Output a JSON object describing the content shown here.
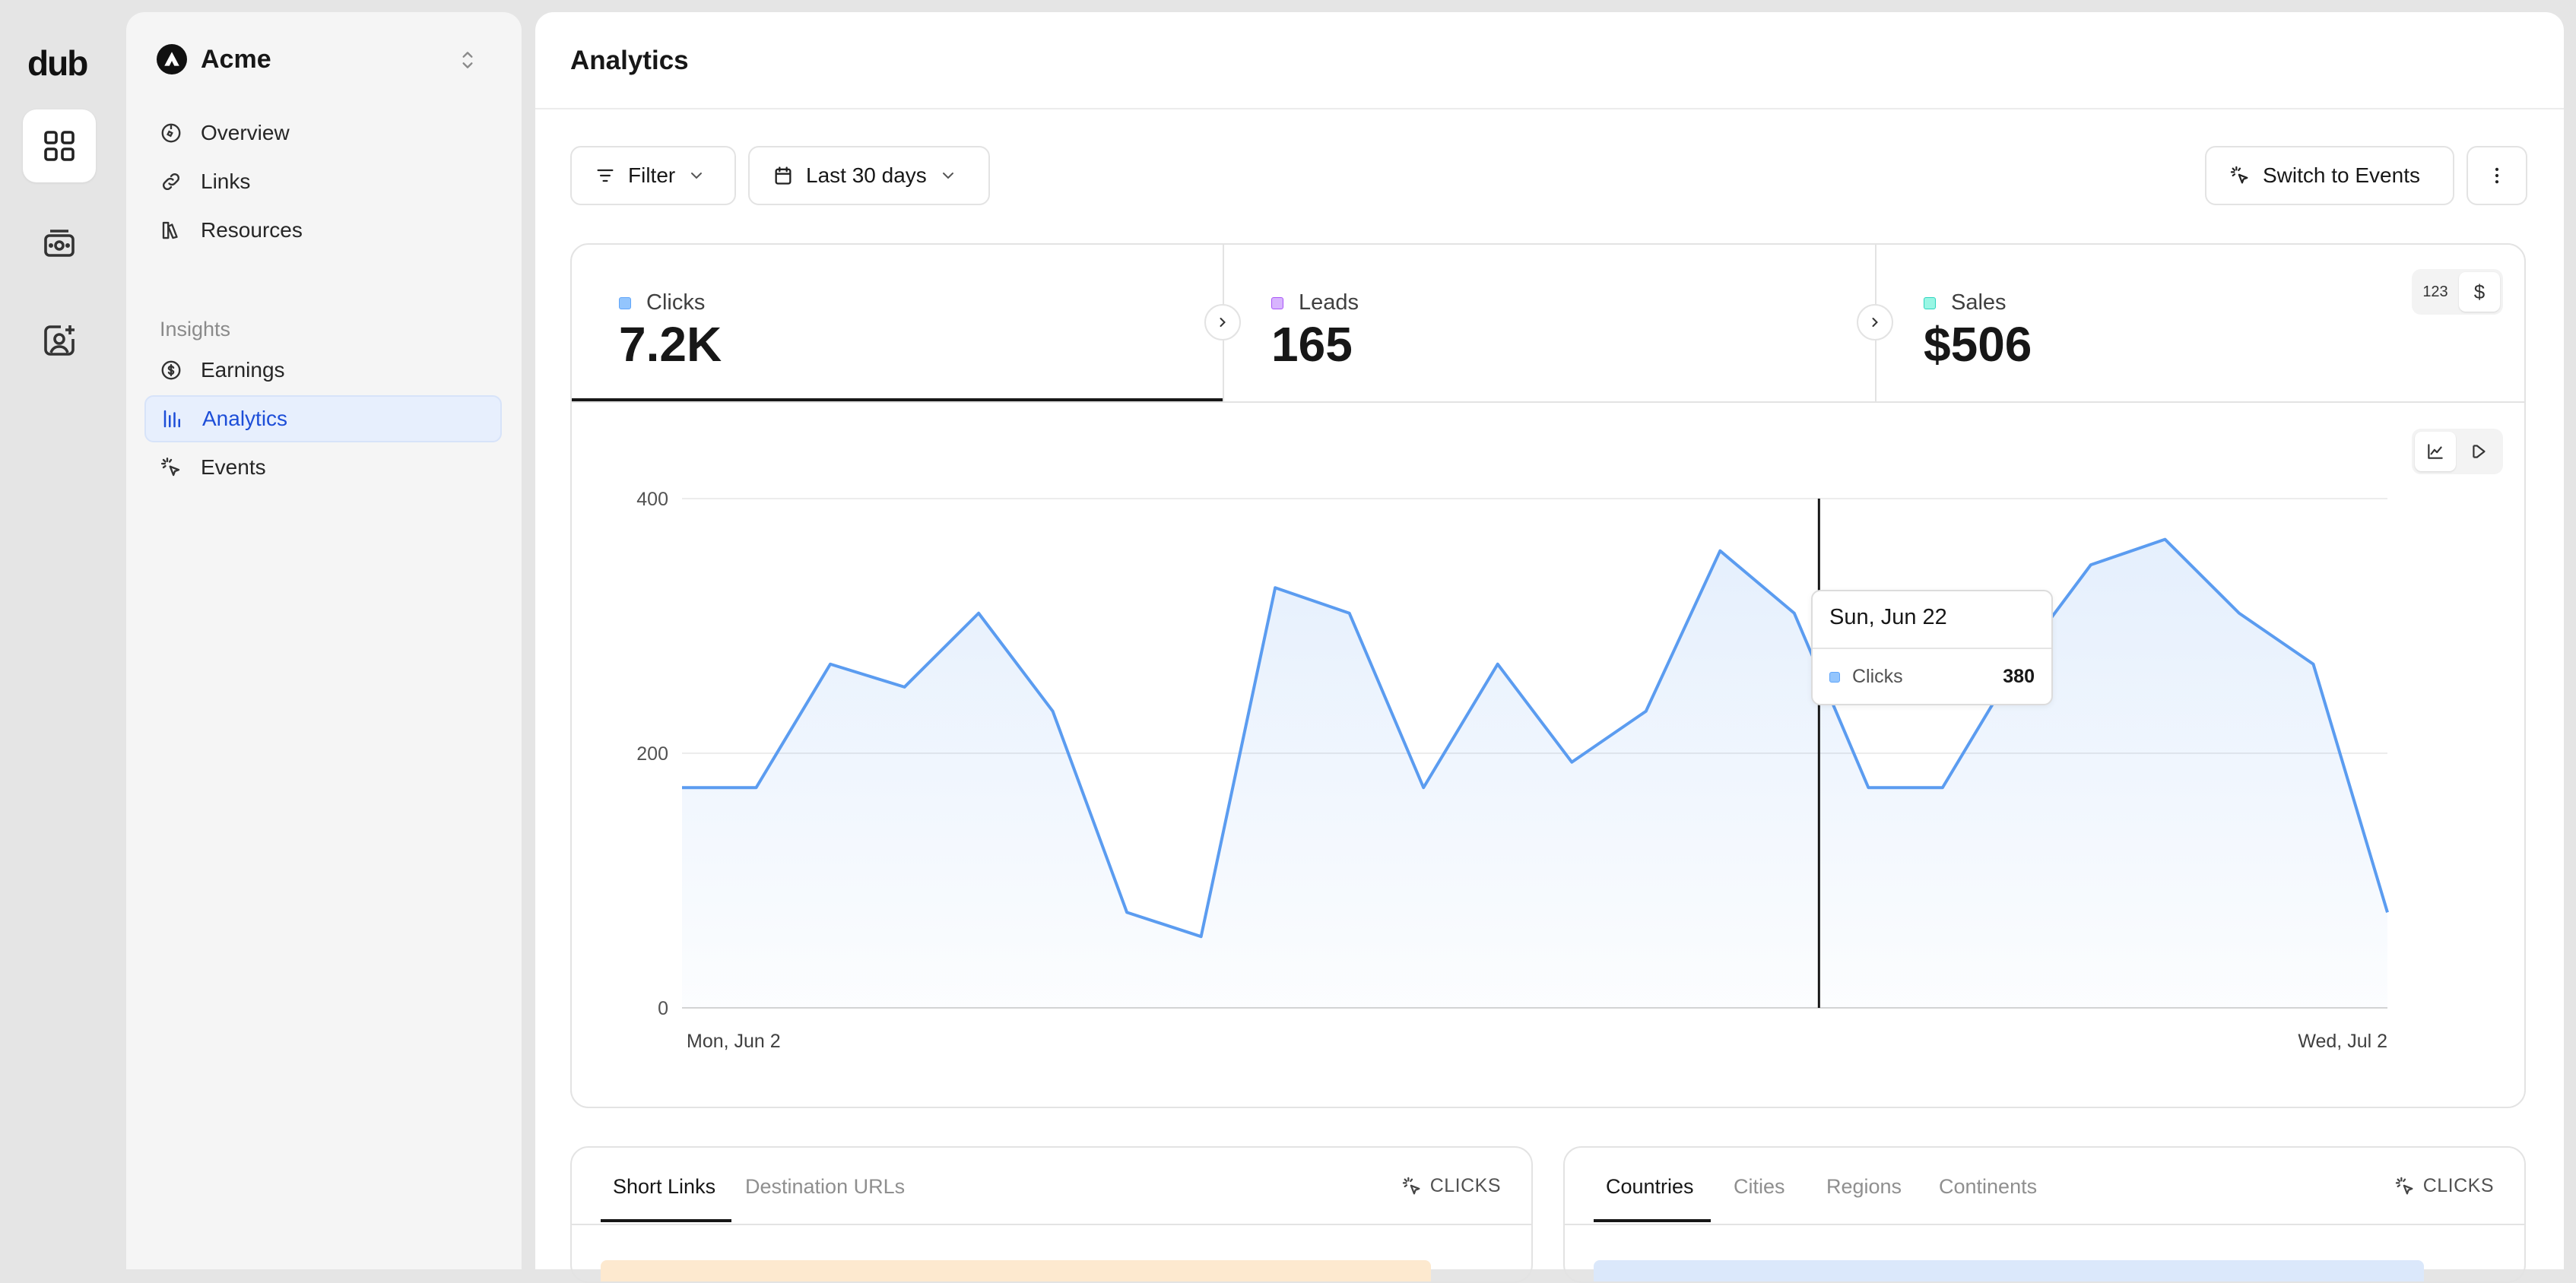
{
  "rail": {
    "logo": "dub"
  },
  "sidebar": {
    "workspace": "Acme",
    "items": [
      {
        "label": "Overview"
      },
      {
        "label": "Links"
      },
      {
        "label": "Resources"
      }
    ],
    "section_label": "Insights",
    "insight_items": [
      {
        "label": "Earnings"
      },
      {
        "label": "Analytics"
      },
      {
        "label": "Events"
      }
    ]
  },
  "header": {
    "title": "Analytics"
  },
  "toolbar": {
    "filter_label": "Filter",
    "date_range": "Last 30 days",
    "switch_label": "Switch to Events"
  },
  "stats": [
    {
      "label": "Clicks",
      "value": "7.2K",
      "color": "#93c5fd"
    },
    {
      "label": "Leads",
      "value": "165",
      "color": "#c4b5fd"
    },
    {
      "label": "Sales",
      "value": "$506",
      "color": "#5eead4"
    }
  ],
  "unit_toggle": {
    "count": "123",
    "currency": "$"
  },
  "chart_data": {
    "type": "area",
    "series": [
      {
        "name": "Clicks",
        "values": [
          173,
          173,
          270,
          252,
          310,
          233,
          75,
          56,
          330,
          310,
          173,
          270,
          193,
          233,
          359,
          310,
          173,
          173,
          270,
          348,
          368,
          310,
          270,
          75
        ]
      }
    ],
    "ylim": [
      0,
      400
    ],
    "yticks": [
      "400",
      "200",
      "0"
    ],
    "x_start_label": "Mon, Jun 2",
    "x_end_label": "Wed, Jul 2",
    "color": "#5b9cf0"
  },
  "tooltip": {
    "date": "Sun, Jun 22",
    "series": "Clicks",
    "value": "380"
  },
  "bottom_left": {
    "tabs": [
      "Short Links",
      "Destination URLs"
    ],
    "metric": "CLICKS"
  },
  "bottom_right": {
    "tabs": [
      "Countries",
      "Cities",
      "Regions",
      "Continents"
    ],
    "metric": "CLICKS"
  }
}
